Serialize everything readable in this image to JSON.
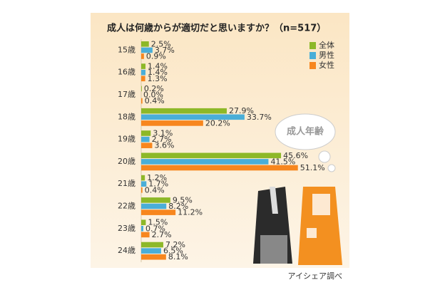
{
  "chart_data": {
    "type": "bar",
    "orientation": "horizontal",
    "title": "成人は何歳からが適切だと思いますか？（n=517）",
    "categories": [
      "15歳",
      "16歳",
      "17歳",
      "18歳",
      "19歳",
      "20歳",
      "21歳",
      "22歳",
      "23歳",
      "24歳"
    ],
    "series": [
      {
        "name": "全体",
        "color": "#8db828",
        "values": [
          2.5,
          1.4,
          0.2,
          27.9,
          3.1,
          45.6,
          1.2,
          9.5,
          1.5,
          7.2
        ],
        "value_labels": [
          "2.5%",
          "1.4%",
          "0.2%",
          "27.9%",
          "3.1%",
          "45.6%",
          "1.2%",
          "9.5%",
          "1.5%",
          "7.2%"
        ]
      },
      {
        "name": "男性",
        "color": "#4aaed8",
        "values": [
          3.7,
          1.4,
          0.0,
          33.7,
          2.7,
          41.5,
          1.7,
          8.2,
          0.7,
          6.5
        ],
        "value_labels": [
          "3.7%",
          "1.4%",
          "0.0%",
          "33.7%",
          "2.7%",
          "41.5%",
          "1.7%",
          "8.2%",
          "0.7%",
          "6.5%"
        ]
      },
      {
        "name": "女性",
        "color": "#f7861e",
        "values": [
          0.9,
          1.3,
          0.4,
          20.2,
          3.6,
          51.1,
          0.4,
          11.2,
          2.7,
          8.1
        ],
        "value_labels": [
          "0.9%",
          "1.3%",
          "0.4%",
          "20.2%",
          "3.6%",
          "51.1%",
          "0.4%",
          "11.2%",
          "2.7%",
          "8.1%"
        ]
      }
    ],
    "legend": "top-right",
    "annotation": "成人年齢",
    "source": "アイシェア調べ"
  }
}
